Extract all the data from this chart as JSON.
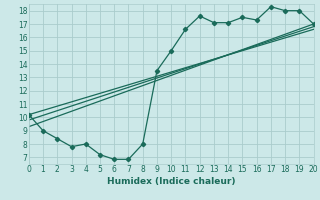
{
  "bg_color": "#cce8e8",
  "grid_color": "#aacccc",
  "line_color": "#1a6b5a",
  "xlabel": "Humidex (Indice chaleur)",
  "xlim": [
    0,
    20
  ],
  "ylim": [
    6.5,
    18.5
  ],
  "yticks": [
    7,
    8,
    9,
    10,
    11,
    12,
    13,
    14,
    15,
    16,
    17,
    18
  ],
  "xticks": [
    0,
    1,
    2,
    3,
    4,
    5,
    6,
    7,
    8,
    9,
    10,
    11,
    12,
    13,
    14,
    15,
    16,
    17,
    18,
    19,
    20
  ],
  "zigzag_x": [
    0,
    1,
    2,
    3,
    4,
    5,
    6,
    7,
    8,
    9,
    10,
    11,
    12,
    13,
    14,
    15,
    16,
    17,
    18,
    19,
    20
  ],
  "zigzag_y": [
    10.2,
    9.0,
    8.4,
    7.8,
    8.0,
    7.2,
    6.85,
    6.85,
    8.0,
    13.5,
    15.0,
    16.6,
    17.6,
    17.1,
    17.1,
    17.5,
    17.3,
    18.3,
    18.0,
    18.0,
    17.0
  ],
  "line1_x": [
    0,
    20
  ],
  "line1_y": [
    9.3,
    17.0
  ],
  "line2_x": [
    0,
    20
  ],
  "line2_y": [
    9.8,
    16.8
  ],
  "line3_x": [
    0,
    20
  ],
  "line3_y": [
    10.2,
    16.6
  ]
}
